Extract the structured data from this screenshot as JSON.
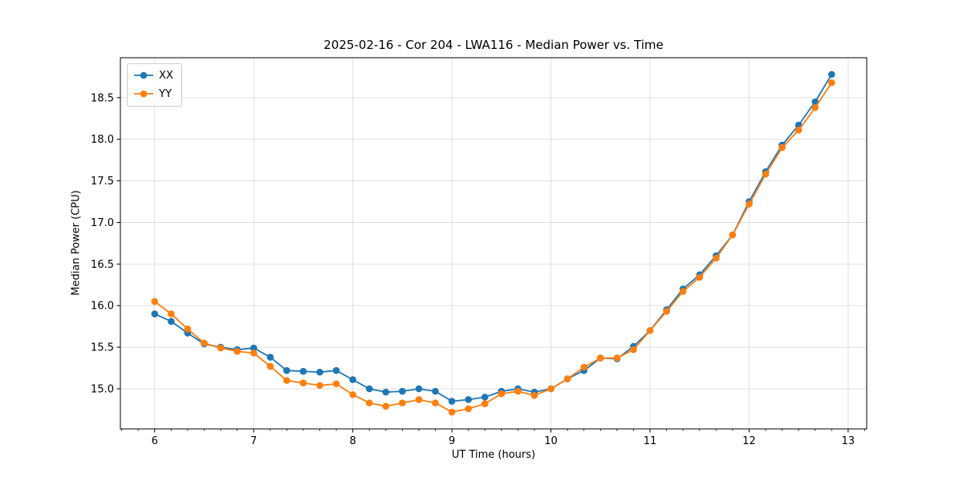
{
  "figure": {
    "background": "#ffffff",
    "grid_color": "#e0e0e0",
    "spine_color": "#000000",
    "text_color": "#000000"
  },
  "chart_data": {
    "type": "line",
    "title": "2025-02-16 - Cor 204 - LWA116 - Median Power vs. Time",
    "xlabel": "UT Time (hours)",
    "ylabel": "Median Power (CPU)",
    "xlim": [
      5.654,
      13.187
    ],
    "ylim": [
      14.518,
      18.98
    ],
    "x_ticks": [
      6,
      7,
      8,
      9,
      10,
      11,
      12,
      13
    ],
    "y_ticks": [
      15.0,
      15.5,
      16.0,
      16.5,
      17.0,
      17.5,
      18.0,
      18.5
    ],
    "x_minor_step": 0.1666667,
    "grid": true,
    "legend_position": "upper-left",
    "x": [
      6.0,
      6.167,
      6.333,
      6.5,
      6.667,
      6.833,
      7.0,
      7.167,
      7.333,
      7.5,
      7.667,
      7.833,
      8.0,
      8.167,
      8.333,
      8.5,
      8.667,
      8.833,
      9.0,
      9.167,
      9.333,
      9.5,
      9.667,
      9.833,
      10.0,
      10.167,
      10.333,
      10.5,
      10.667,
      10.833,
      11.0,
      11.167,
      11.333,
      11.5,
      11.667,
      11.833,
      12.0,
      12.167,
      12.333,
      12.5,
      12.667,
      12.833
    ],
    "series": [
      {
        "name": "XX",
        "color": "#1f77b4",
        "values": [
          15.9,
          15.81,
          15.67,
          15.54,
          15.5,
          15.47,
          15.49,
          15.38,
          15.22,
          15.21,
          15.2,
          15.22,
          15.11,
          15.0,
          14.96,
          14.97,
          15.0,
          14.97,
          14.85,
          14.87,
          14.9,
          14.97,
          15.0,
          14.96,
          15.0,
          15.12,
          15.22,
          15.37,
          15.36,
          15.51,
          15.7,
          15.95,
          16.2,
          16.37,
          16.6,
          16.85,
          17.25,
          17.61,
          17.93,
          18.17,
          18.45,
          18.78
        ]
      },
      {
        "name": "YY",
        "color": "#ff7f0e",
        "values": [
          16.05,
          15.9,
          15.72,
          15.55,
          15.49,
          15.45,
          15.43,
          15.27,
          15.1,
          15.07,
          15.04,
          15.06,
          14.93,
          14.83,
          14.79,
          14.83,
          14.87,
          14.83,
          14.72,
          14.76,
          14.82,
          14.94,
          14.97,
          14.92,
          15.0,
          15.12,
          15.26,
          15.37,
          15.37,
          15.47,
          15.7,
          15.93,
          16.17,
          16.34,
          16.57,
          16.85,
          17.22,
          17.58,
          17.9,
          18.11,
          18.38,
          18.68
        ]
      }
    ]
  }
}
